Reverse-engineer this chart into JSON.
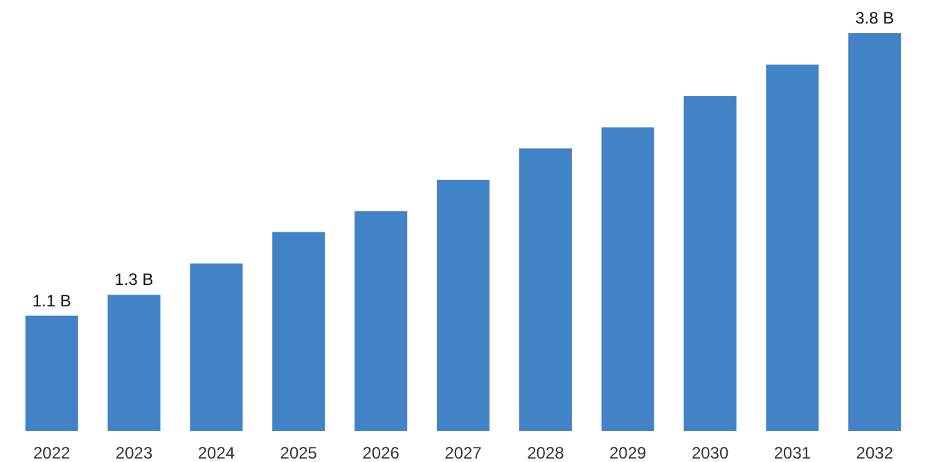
{
  "chart_data": {
    "type": "bar",
    "categories": [
      "2022",
      "2023",
      "2024",
      "2025",
      "2026",
      "2027",
      "2028",
      "2029",
      "2030",
      "2031",
      "2032"
    ],
    "values": [
      1.1,
      1.3,
      1.6,
      1.9,
      2.1,
      2.4,
      2.7,
      2.9,
      3.2,
      3.5,
      3.8
    ],
    "value_labels": [
      "1.1 B",
      "1.3 B",
      null,
      null,
      null,
      null,
      null,
      null,
      null,
      null,
      "3.8 B"
    ],
    "color": "#4282c6"
  }
}
